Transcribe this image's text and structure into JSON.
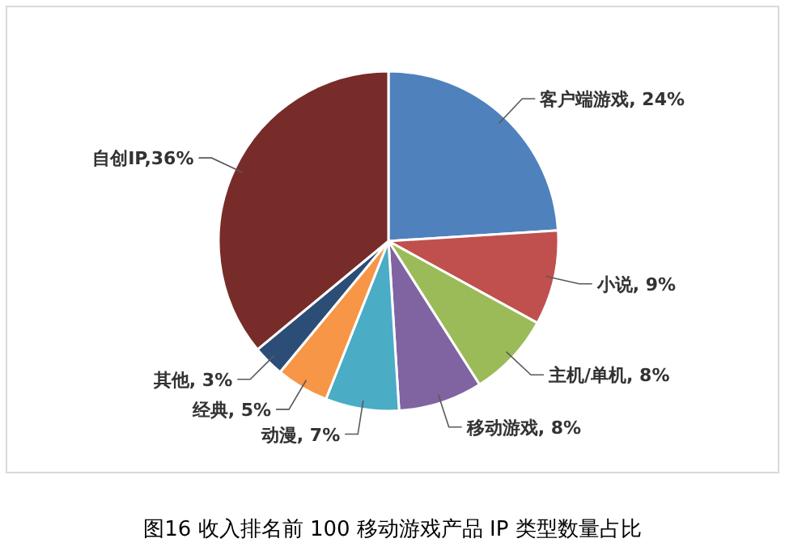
{
  "chart_data": {
    "type": "pie",
    "title": "图16  收入排名前 100 移动游戏产品 IP 类型数量占比",
    "categories": [
      "客户端游戏",
      "小说",
      "主机/单机",
      "移动游戏",
      "动漫",
      "经典",
      "其他",
      "自创IP"
    ],
    "values": [
      24,
      9,
      8,
      8,
      7,
      5,
      3,
      36
    ],
    "value_labels": [
      ", 24%",
      ", 9%",
      ", 8%",
      ", 8%",
      ", 7%",
      ", 5%",
      ", 3%",
      ",36%"
    ],
    "colors": [
      "#4f81bd",
      "#c0504d",
      "#9bbb59",
      "#8064a2",
      "#4bacc6",
      "#f79646",
      "#2c4d75",
      "#772c2a"
    ],
    "legend": false
  }
}
